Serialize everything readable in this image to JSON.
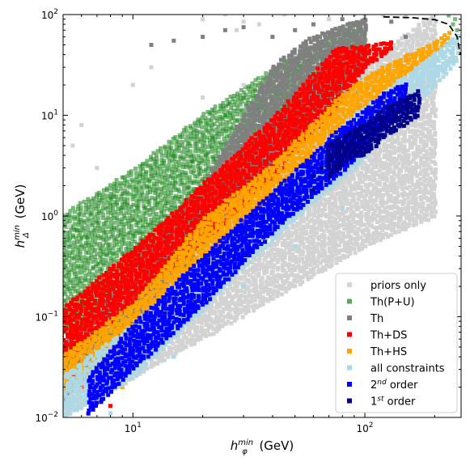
{
  "chart_data": {
    "type": "scatter",
    "title": "",
    "xlabel": {
      "base": "h",
      "sub": "φ",
      "sup": "min",
      "unit": " (GeV)"
    },
    "ylabel": {
      "base": "h",
      "sub": "Δ",
      "sup": "min",
      "unit": " (GeV)"
    },
    "x_scale": "log",
    "y_scale": "log",
    "xlim": [
      5,
      260
    ],
    "ylim": [
      0.01,
      100
    ],
    "x_ticks": [
      {
        "value": 10,
        "base": "10",
        "exp": "1"
      },
      {
        "value": 100,
        "base": "10",
        "exp": "2"
      }
    ],
    "y_ticks": [
      {
        "value": 0.01,
        "base": "10",
        "exp": "−2"
      },
      {
        "value": 0.1,
        "base": "10",
        "exp": "−1"
      },
      {
        "value": 1,
        "base": "10",
        "exp": "0"
      },
      {
        "value": 10,
        "base": "10",
        "exp": "1"
      },
      {
        "value": 100,
        "base": "10",
        "exp": "2"
      }
    ],
    "legend_position": "lower-right",
    "legend": [
      {
        "label": "priors only",
        "color": "#d3d3d3"
      },
      {
        "label": "Th(P+U)",
        "color": "#5aa85a"
      },
      {
        "label": "Th",
        "color": "#808080"
      },
      {
        "label": "Th+DS",
        "color": "#ff0000"
      },
      {
        "label": "Th+HS",
        "color": "#ffa500"
      },
      {
        "label": "all constraints",
        "color": "#add8e6"
      },
      {
        "label_base": "2",
        "label_sup": "nd",
        "label_rest": " order",
        "color": "#0000ff"
      },
      {
        "label_base": "1",
        "label_sup": "st",
        "label_rest": " order",
        "color": "#00008b"
      }
    ],
    "boundary": {
      "style": "dashed",
      "color": "#000000",
      "points": [
        [
          120,
          95
        ],
        [
          160,
          93
        ],
        [
          200,
          89
        ],
        [
          230,
          80
        ],
        [
          250,
          60
        ],
        [
          258,
          40
        ]
      ]
    },
    "series": [
      {
        "name": "Th(P+U)",
        "color": "#228b22",
        "opacity": 0.6,
        "band": [
          [
            5,
            0.07,
            1.0
          ],
          [
            10,
            0.2,
            2.8
          ],
          [
            20,
            0.7,
            10
          ],
          [
            40,
            2.5,
            28
          ],
          [
            70,
            7,
            60
          ],
          [
            100,
            14,
            90
          ]
        ],
        "points": [
          [
            8,
            1.5
          ],
          [
            12,
            2.5
          ],
          [
            15,
            4
          ],
          [
            22,
            6
          ],
          [
            30,
            15
          ],
          [
            6,
            0.6
          ],
          [
            9,
            1.2
          ],
          [
            18,
            3.5
          ],
          [
            25,
            10
          ],
          [
            35,
            12
          ],
          [
            230,
            98
          ],
          [
            245,
            90
          ],
          [
            250,
            70
          ],
          [
            240,
            80
          ]
        ]
      },
      {
        "name": "priors only",
        "color": "#d3d3d3",
        "opacity": 1,
        "band": [
          [
            5,
            0.01,
            0.05
          ],
          [
            100,
            0.5,
            30
          ],
          [
            200,
            1,
            100
          ]
        ],
        "points": [
          [
            5.5,
            5
          ],
          [
            6,
            8
          ],
          [
            10,
            20
          ],
          [
            12,
            30
          ],
          [
            20,
            90
          ],
          [
            30,
            85
          ],
          [
            35,
            80
          ],
          [
            40,
            60
          ],
          [
            50,
            40
          ],
          [
            55,
            35
          ],
          [
            60,
            80
          ],
          [
            70,
            90
          ],
          [
            80,
            30
          ],
          [
            90,
            100
          ],
          [
            100,
            95
          ],
          [
            120,
            100
          ],
          [
            150,
            95
          ],
          [
            20,
            15
          ],
          [
            30,
            20
          ],
          [
            25,
            100
          ],
          [
            28,
            70
          ],
          [
            45,
            100
          ],
          [
            5.3,
            0.8
          ],
          [
            7,
            3
          ]
        ]
      },
      {
        "name": "Th",
        "color": "#808080",
        "opacity": 1,
        "band": [
          [
            5,
            0.015,
            0.05
          ],
          [
            20,
            0.5,
            2
          ],
          [
            40,
            3,
            30
          ],
          [
            60,
            10,
            60
          ],
          [
            100,
            30,
            90
          ]
        ],
        "points": [
          [
            12,
            50
          ],
          [
            15,
            55
          ],
          [
            20,
            60
          ],
          [
            25,
            70
          ],
          [
            30,
            75
          ],
          [
            40,
            60
          ],
          [
            50,
            70
          ],
          [
            60,
            80
          ],
          [
            80,
            90
          ],
          [
            100,
            88
          ],
          [
            130,
            85
          ],
          [
            150,
            60
          ]
        ]
      },
      {
        "name": "Th+DS",
        "color": "#ff0000",
        "opacity": 1,
        "band": [
          [
            5,
            0.035,
            0.12
          ],
          [
            10,
            0.14,
            0.45
          ],
          [
            20,
            0.55,
            2.0
          ],
          [
            40,
            2.4,
            9
          ],
          [
            60,
            7,
            25
          ],
          [
            75,
            12,
            45
          ],
          [
            100,
            30,
            48
          ],
          [
            130,
            45,
            52
          ]
        ],
        "points": [
          [
            5.5,
            0.025
          ],
          [
            6,
            0.02
          ],
          [
            8,
            0.013
          ],
          [
            12,
            0.25
          ],
          [
            22,
            0.32
          ],
          [
            24,
            0.6
          ],
          [
            28,
            1.1
          ],
          [
            30,
            1.3
          ]
        ]
      },
      {
        "name": "Th+HS",
        "color": "#ffa500",
        "opacity": 1,
        "band": [
          [
            5,
            0.018,
            0.04
          ],
          [
            10,
            0.05,
            0.13
          ],
          [
            20,
            0.35,
            0.9
          ],
          [
            40,
            1.6,
            3.2
          ],
          [
            60,
            4,
            8
          ],
          [
            80,
            7,
            16
          ],
          [
            120,
            18,
            30
          ],
          [
            180,
            35,
            45
          ],
          [
            230,
            55,
            65
          ]
        ],
        "points": [
          [
            7,
            0.014
          ],
          [
            9,
            0.02
          ],
          [
            50,
            3
          ],
          [
            70,
            5
          ],
          [
            90,
            8
          ]
        ]
      },
      {
        "name": "all constraints",
        "color": "#add8e6",
        "opacity": 1,
        "band": [
          [
            5,
            0.01,
            0.025
          ],
          [
            10,
            0.025,
            0.08
          ],
          [
            20,
            0.12,
            0.35
          ],
          [
            40,
            0.6,
            1.5
          ],
          [
            60,
            1.4,
            4
          ],
          [
            90,
            3,
            10
          ],
          [
            120,
            6,
            16
          ],
          [
            150,
            10,
            24
          ],
          [
            200,
            20,
            40
          ],
          [
            250,
            35,
            60
          ]
        ],
        "points": [
          [
            8,
            0.011
          ],
          [
            15,
            0.04
          ],
          [
            30,
            0.2
          ],
          [
            50,
            0.5
          ],
          [
            80,
            1.2
          ]
        ]
      },
      {
        "name": "2nd order",
        "color": "#0000ff",
        "opacity": 1,
        "band": [
          [
            6.5,
            0.011,
            0.025
          ],
          [
            10,
            0.03,
            0.08
          ],
          [
            20,
            0.13,
            0.38
          ],
          [
            40,
            0.7,
            1.7
          ],
          [
            60,
            1.6,
            4
          ],
          [
            80,
            2.8,
            7.5
          ],
          [
            95,
            4,
            10
          ],
          [
            120,
            8,
            16
          ],
          [
            150,
            12,
            20
          ]
        ],
        "points": [
          [
            30,
            0.6
          ],
          [
            40,
            1.1
          ],
          [
            55,
            2.2
          ],
          [
            70,
            3.5
          ],
          [
            85,
            5.5
          ]
        ]
      },
      {
        "name": "1st order",
        "color": "#00008b",
        "opacity": 1,
        "band": [
          [
            70,
            2.5,
            5
          ],
          [
            90,
            4,
            7
          ],
          [
            100,
            4,
            8
          ],
          [
            120,
            6,
            11
          ],
          [
            160,
            9,
            16
          ],
          [
            170,
            10,
            17
          ]
        ],
        "points": [
          [
            60,
            2.5
          ],
          [
            65,
            3
          ],
          [
            70,
            4
          ],
          [
            75,
            4.5
          ],
          [
            80,
            5
          ],
          [
            60,
            1.8
          ]
        ]
      }
    ]
  }
}
